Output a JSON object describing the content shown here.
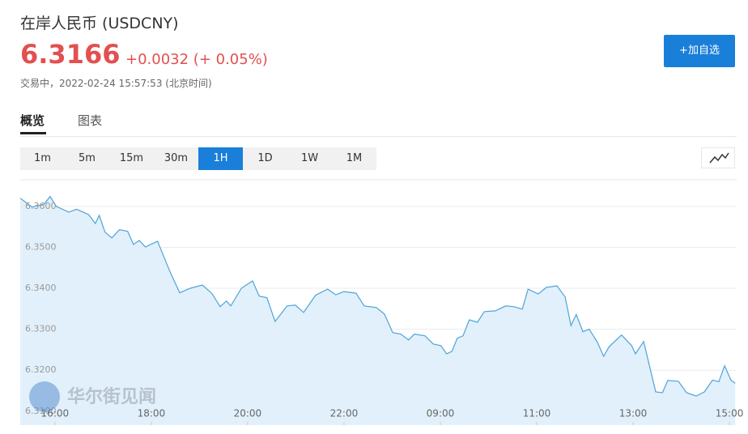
{
  "header": {
    "title": "在岸人民币  (USDCNY)",
    "price": "6.3166",
    "change": "+0.0032 (+ 0.05%)",
    "status": "交易中，2022-02-24 15:57:53 (北京时间)",
    "button": "+加自选"
  },
  "tabs": [
    {
      "label": "概览",
      "active": true
    },
    {
      "label": "图表",
      "active": false
    }
  ],
  "periods": [
    {
      "label": "1m",
      "active": false
    },
    {
      "label": "5m",
      "active": false
    },
    {
      "label": "15m",
      "active": false
    },
    {
      "label": "30m",
      "active": false
    },
    {
      "label": "1H",
      "active": true
    },
    {
      "label": "1D",
      "active": false
    },
    {
      "label": "1W",
      "active": false
    },
    {
      "label": "1M",
      "active": false
    }
  ],
  "chart_data": {
    "type": "area",
    "watermark": "华尔街见闻",
    "color": "#4ea3d8",
    "fill": "#e2f0fb",
    "grid": true,
    "xlim": [
      -0.72,
      14.15
    ],
    "ylim": [
      6.3066,
      6.3665
    ],
    "xticks": [
      {
        "value": 0,
        "label": "16:00"
      },
      {
        "value": 2,
        "label": "18:00"
      },
      {
        "value": 4,
        "label": "20:00"
      },
      {
        "value": 6,
        "label": "22:00"
      },
      {
        "value": 8,
        "label": "09:00"
      },
      {
        "value": 10,
        "label": "11:00"
      },
      {
        "value": 12,
        "label": "13:00"
      },
      {
        "value": 14,
        "label": "15:00"
      }
    ],
    "yticks": [
      {
        "value": 6.31,
        "label": "6.3100"
      },
      {
        "value": 6.32,
        "label": "6.3200"
      },
      {
        "value": 6.33,
        "label": "6.3300"
      },
      {
        "value": 6.34,
        "label": "6.3400"
      },
      {
        "value": 6.35,
        "label": "6.3500"
      },
      {
        "value": 6.36,
        "label": "6.3600"
      }
    ],
    "x": [
      -0.72,
      -0.47,
      -0.22,
      -0.1,
      0.03,
      0.29,
      0.45,
      0.7,
      0.84,
      0.92,
      1.04,
      1.18,
      1.34,
      1.51,
      1.63,
      1.75,
      1.88,
      2.13,
      2.39,
      2.59,
      2.81,
      3.06,
      3.26,
      3.43,
      3.56,
      3.65,
      3.87,
      4.1,
      4.24,
      4.4,
      4.57,
      4.82,
      4.99,
      5.16,
      5.41,
      5.66,
      5.83,
      6.0,
      6.25,
      6.42,
      6.67,
      6.84,
      7.01,
      7.18,
      7.34,
      7.46,
      7.68,
      7.85,
      8.01,
      8.13,
      8.24,
      8.35,
      8.47,
      8.6,
      8.77,
      8.91,
      9.14,
      9.36,
      9.53,
      9.7,
      9.82,
      10.03,
      10.2,
      10.42,
      10.59,
      10.71,
      10.82,
      10.96,
      11.09,
      11.26,
      11.39,
      11.5,
      11.76,
      11.97,
      12.05,
      12.22,
      12.34,
      12.47,
      12.61,
      12.72,
      12.94,
      13.11,
      13.31,
      13.48,
      13.65,
      13.78,
      13.9,
      14.03,
      14.12
    ],
    "values": [
      6.362,
      6.3598,
      6.3606,
      6.3624,
      6.36,
      6.3586,
      6.3593,
      6.358,
      6.3558,
      6.3578,
      6.3537,
      6.3523,
      6.3543,
      6.3539,
      6.3507,
      6.3517,
      6.3501,
      6.3515,
      6.344,
      6.3389,
      6.34,
      6.3408,
      6.3387,
      6.3355,
      6.3369,
      6.3357,
      6.34,
      6.3418,
      6.3381,
      6.3377,
      6.3319,
      6.3357,
      6.3359,
      6.3341,
      6.3383,
      6.3398,
      6.3384,
      6.3392,
      6.3388,
      6.3357,
      6.3353,
      6.3337,
      6.3292,
      6.3288,
      6.3274,
      6.3288,
      6.3284,
      6.3264,
      6.326,
      6.324,
      6.3246,
      6.3278,
      6.3284,
      6.3323,
      6.3317,
      6.3343,
      6.3345,
      6.3357,
      6.3355,
      6.3349,
      6.3398,
      6.3386,
      6.3402,
      6.3406,
      6.3379,
      6.3309,
      6.3336,
      6.3294,
      6.33,
      6.3268,
      6.3234,
      6.3257,
      6.3286,
      6.326,
      6.324,
      6.327,
      6.3211,
      6.3147,
      6.3145,
      6.3175,
      6.3173,
      6.3145,
      6.3137,
      6.3147,
      6.3176,
      6.3172,
      6.3211,
      6.3176,
      6.3168
    ]
  }
}
